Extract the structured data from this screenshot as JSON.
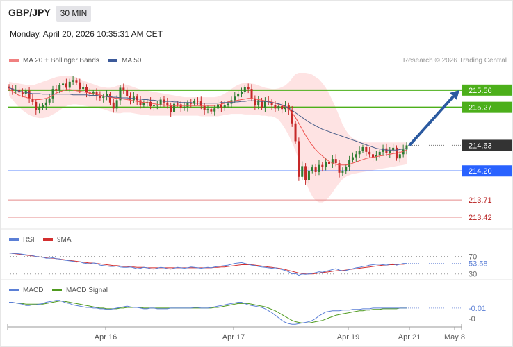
{
  "header": {
    "symbol": "GBP/JPY",
    "timeframe": "30 MIN",
    "datetime": "Monday, April 20, 2026 10:35:31 AM CET"
  },
  "colors": {
    "up_candle": "#2e7d32",
    "down_candle": "#c62828",
    "ma20": "#ef5350",
    "ma50": "#4a5f8a",
    "bollinger": "#fddada",
    "resistance": "#4caf1a",
    "support": "#2962ff",
    "last_price": "#333333",
    "forecast_arrow": "#2b5aa0",
    "rsi": "#5b7fd6",
    "rsi_ma": "#d32f2f",
    "macd": "#5b7fd6",
    "macd_signal": "#4f9a1f"
  },
  "chart_data": [
    {
      "type": "candlestick",
      "title": "GBP/JPY",
      "legend": [
        {
          "name": "MA 20 + Bollinger Bands",
          "color": "#f08080"
        },
        {
          "name": "MA 50",
          "color": "#3c5a9a"
        }
      ],
      "legend_position": "top-left",
      "credit": "Research © 2026 Trading Central",
      "yaxis_side": "right",
      "ylim": [
        213.35,
        215.85
      ],
      "x_ticks": [
        "Apr 16",
        "Apr 17",
        "Apr 19",
        "Apr 21",
        "May 8"
      ],
      "levels": [
        {
          "value": 215.56,
          "label": "215.56",
          "kind": "resistance"
        },
        {
          "value": 215.27,
          "label": "215.27",
          "kind": "resistance"
        },
        {
          "value": 214.63,
          "label": "214.63",
          "kind": "last_price"
        },
        {
          "value": 214.2,
          "label": "214.20",
          "kind": "support"
        },
        {
          "value": 213.71,
          "label": "213.71",
          "kind": "support_line"
        },
        {
          "value": 213.42,
          "label": "213.42",
          "kind": "support_line"
        }
      ],
      "forecast_target": 215.56,
      "close": [
        215.59,
        215.55,
        215.57,
        215.52,
        215.5,
        215.55,
        215.41,
        215.36,
        215.23,
        215.26,
        215.3,
        215.35,
        215.42,
        215.58,
        215.55,
        215.64,
        215.67,
        215.6,
        215.7,
        215.73,
        215.69,
        215.58,
        215.61,
        215.52,
        215.5,
        215.53,
        215.46,
        215.43,
        215.45,
        215.49,
        215.35,
        215.25,
        215.39,
        215.6,
        215.56,
        215.46,
        215.39,
        215.45,
        215.39,
        215.31,
        215.35,
        215.36,
        215.29,
        215.3,
        215.31,
        215.4,
        215.35,
        215.3,
        215.19,
        215.33,
        215.32,
        215.26,
        215.28,
        215.34,
        215.33,
        215.38,
        215.37,
        215.29,
        215.23,
        215.24,
        215.2,
        215.25,
        215.32,
        215.27,
        215.3,
        215.33,
        215.39,
        215.45,
        215.5,
        215.53,
        215.61,
        215.58,
        215.42,
        215.3,
        215.39,
        215.26,
        215.38,
        215.36,
        215.31,
        215.25,
        215.29,
        215.24,
        215.3,
        215.22,
        215.0,
        214.7,
        214.1,
        214.28,
        214.05,
        214.2,
        214.26,
        214.18,
        214.3,
        214.27,
        214.35,
        214.32,
        214.4,
        214.33,
        214.17,
        214.19,
        214.27,
        214.39,
        214.43,
        214.48,
        214.54,
        214.6,
        214.52,
        214.48,
        214.43,
        214.46,
        214.52,
        214.58,
        214.5,
        214.55,
        214.59,
        214.41,
        214.48,
        214.56,
        214.63
      ],
      "ma20": [
        215.58,
        215.54,
        215.5,
        215.47,
        215.45,
        215.44,
        215.42,
        215.41,
        215.4,
        215.4,
        215.41,
        215.42,
        215.44,
        215.47,
        215.51,
        215.53,
        215.55,
        215.57,
        215.57,
        215.56,
        215.55,
        215.54,
        215.53,
        215.52,
        215.51,
        215.5,
        215.49,
        215.48,
        215.46,
        215.45,
        215.44,
        215.43,
        215.42,
        215.42,
        215.41,
        215.4,
        215.39,
        215.38,
        215.37,
        215.36,
        215.35,
        215.35,
        215.34,
        215.33,
        215.32,
        215.31,
        215.31,
        215.3,
        215.3,
        215.3,
        215.3,
        215.3,
        215.3,
        215.3,
        215.3,
        215.3,
        215.3,
        215.3,
        215.3,
        215.3,
        215.3,
        215.3,
        215.31,
        215.32,
        215.34,
        215.36,
        215.37,
        215.38,
        215.39,
        215.4,
        215.41,
        215.42,
        215.42,
        215.41,
        215.4,
        215.39,
        215.38,
        215.37,
        215.36,
        215.34,
        215.32,
        215.3,
        215.28,
        215.24,
        215.18,
        215.1,
        215.0,
        214.9,
        214.8,
        214.71,
        214.63,
        214.56,
        214.5,
        214.45,
        214.4,
        214.36,
        214.33,
        214.31,
        214.3,
        214.3,
        214.3,
        214.31,
        214.33,
        214.35,
        214.37,
        214.39,
        214.41,
        214.42,
        214.43,
        214.44,
        214.45,
        214.46,
        214.47,
        214.48,
        214.49,
        214.5,
        214.51,
        214.53,
        214.55
      ],
      "ma50": [
        215.6,
        215.58,
        215.56,
        215.54,
        215.53,
        215.52,
        215.51,
        215.5,
        215.5,
        215.5,
        215.49,
        215.49,
        215.49,
        215.49,
        215.49,
        215.49,
        215.49,
        215.49,
        215.49,
        215.48,
        215.48,
        215.48,
        215.48,
        215.48,
        215.47,
        215.47,
        215.47,
        215.46,
        215.46,
        215.45,
        215.45,
        215.44,
        215.44,
        215.43,
        215.43,
        215.43,
        215.42,
        215.42,
        215.41,
        215.41,
        215.4,
        215.4,
        215.39,
        215.39,
        215.38,
        215.38,
        215.37,
        215.37,
        215.37,
        215.36,
        215.36,
        215.35,
        215.35,
        215.35,
        215.35,
        215.34,
        215.34,
        215.34,
        215.34,
        215.34,
        215.34,
        215.34,
        215.34,
        215.35,
        215.35,
        215.35,
        215.35,
        215.36,
        215.36,
        215.37,
        215.37,
        215.38,
        215.38,
        215.38,
        215.37,
        215.37,
        215.37,
        215.36,
        215.35,
        215.34,
        215.33,
        215.31,
        215.29,
        215.26,
        215.22,
        215.18,
        215.14,
        215.1,
        215.06,
        215.02,
        214.99,
        214.96,
        214.93,
        214.9,
        214.88,
        214.86,
        214.84,
        214.82,
        214.8,
        214.78,
        214.76,
        214.74,
        214.72,
        214.7,
        214.68,
        214.66,
        214.64,
        214.62,
        214.6,
        214.58,
        214.57,
        214.56,
        214.55,
        214.55,
        214.55,
        214.55,
        214.56,
        214.57,
        214.58
      ],
      "bb_upper": [
        215.7,
        215.69,
        215.68,
        215.67,
        215.66,
        215.65,
        215.64,
        215.64,
        215.66,
        215.68,
        215.7,
        215.72,
        215.74,
        215.76,
        215.78,
        215.79,
        215.8,
        215.8,
        215.8,
        215.79,
        215.77,
        215.75,
        215.72,
        215.7,
        215.68,
        215.66,
        215.64,
        215.62,
        215.61,
        215.6,
        215.6,
        215.61,
        215.63,
        215.65,
        215.66,
        215.65,
        215.63,
        215.61,
        215.59,
        215.57,
        215.56,
        215.55,
        215.54,
        215.53,
        215.52,
        215.51,
        215.5,
        215.49,
        215.48,
        215.47,
        215.46,
        215.45,
        215.44,
        215.44,
        215.44,
        215.44,
        215.44,
        215.44,
        215.44,
        215.44,
        215.44,
        215.44,
        215.45,
        215.47,
        215.5,
        215.54,
        215.58,
        215.62,
        215.65,
        215.67,
        215.68,
        215.68,
        215.67,
        215.66,
        215.64,
        215.62,
        215.6,
        215.59,
        215.58,
        215.58,
        215.59,
        215.61,
        215.64,
        215.69,
        215.76,
        215.83,
        215.85,
        215.85,
        215.85,
        215.84,
        215.82,
        215.78,
        215.74,
        215.68,
        215.6,
        215.5,
        215.38,
        215.26,
        215.12,
        214.98,
        214.88,
        214.8,
        214.75,
        214.72,
        214.7,
        214.69,
        214.68,
        214.68,
        214.68,
        214.68,
        214.68,
        214.68,
        214.68,
        214.68,
        214.68,
        214.68,
        214.68,
        214.68,
        214.68
      ],
      "bb_lower": [
        215.46,
        215.4,
        215.33,
        215.27,
        215.22,
        215.18,
        215.14,
        215.12,
        215.1,
        215.09,
        215.09,
        215.1,
        215.12,
        215.15,
        215.18,
        215.22,
        215.26,
        215.29,
        215.31,
        215.32,
        215.32,
        215.31,
        215.3,
        215.29,
        215.28,
        215.27,
        215.26,
        215.25,
        215.24,
        215.22,
        215.2,
        215.18,
        215.17,
        215.17,
        215.18,
        215.18,
        215.18,
        215.17,
        215.16,
        215.15,
        215.14,
        215.14,
        215.13,
        215.13,
        215.13,
        215.13,
        215.13,
        215.13,
        215.13,
        215.13,
        215.13,
        215.13,
        215.13,
        215.13,
        215.13,
        215.13,
        215.13,
        215.12,
        215.12,
        215.12,
        215.12,
        215.12,
        215.12,
        215.13,
        215.14,
        215.15,
        215.16,
        215.16,
        215.16,
        215.16,
        215.15,
        215.15,
        215.15,
        215.14,
        215.14,
        215.13,
        215.13,
        215.12,
        215.12,
        215.1,
        215.06,
        214.99,
        214.9,
        214.8,
        214.68,
        214.54,
        214.38,
        214.2,
        214.03,
        213.88,
        213.77,
        213.7,
        213.67,
        213.67,
        213.7,
        213.76,
        213.84,
        213.92,
        214.0,
        214.06,
        214.1,
        214.13,
        214.15,
        214.16,
        214.17,
        214.18,
        214.19,
        214.2,
        214.21,
        214.22,
        214.23,
        214.24,
        214.25,
        214.26,
        214.27,
        214.28,
        214.29,
        214.3,
        214.31
      ]
    },
    {
      "type": "line",
      "legend": [
        {
          "name": "RSI",
          "color": "#5b7fd6"
        },
        {
          "name": "9MA",
          "color": "#d32f2f"
        }
      ],
      "y_ticks": [
        "70",
        "30"
      ],
      "last_value_label": "53.58",
      "rsi": [
        78,
        77,
        77,
        76,
        75,
        74,
        73,
        72,
        70,
        69,
        68,
        66,
        66,
        67,
        65,
        64,
        62,
        61,
        60,
        59,
        57,
        58,
        55,
        54,
        53,
        55,
        54,
        50,
        49,
        48,
        47,
        47,
        48,
        46,
        45,
        45,
        46,
        44,
        42,
        43,
        45,
        44,
        42,
        41,
        43,
        45,
        44,
        42,
        41,
        43,
        45,
        44,
        43,
        44,
        46,
        45,
        44,
        43,
        44,
        45,
        44,
        46,
        47,
        48,
        49,
        50,
        52,
        54,
        55,
        56,
        54,
        52,
        50,
        49,
        47,
        46,
        45,
        44,
        43,
        44,
        42,
        40,
        38,
        35,
        30,
        31,
        27,
        30,
        29,
        30,
        31,
        33,
        35,
        34,
        36,
        38,
        40,
        42,
        39,
        37,
        38,
        40,
        42,
        44,
        45,
        47,
        48,
        50,
        51,
        52,
        52,
        51,
        50,
        52,
        53,
        50,
        52,
        54,
        54
      ],
      "rsi_ma": [
        78,
        77,
        76,
        75,
        74,
        73,
        72,
        71,
        70,
        69,
        68,
        67,
        66,
        66,
        65,
        64,
        63,
        62,
        61,
        60,
        59,
        58,
        57,
        56,
        55,
        55,
        54,
        53,
        52,
        51,
        50,
        49,
        49,
        48,
        47,
        47,
        46,
        46,
        45,
        45,
        45,
        44,
        44,
        44,
        44,
        44,
        44,
        44,
        44,
        44,
        44,
        44,
        44,
        44,
        44,
        44,
        44,
        44,
        44,
        44,
        44,
        45,
        45,
        46,
        46,
        47,
        48,
        49,
        50,
        51,
        51,
        51,
        51,
        50,
        49,
        48,
        47,
        46,
        45,
        44,
        43,
        42,
        40,
        38,
        36,
        34,
        32,
        31,
        30,
        30,
        30,
        31,
        32,
        33,
        34,
        35,
        36,
        37,
        38,
        38,
        39,
        40,
        41,
        42,
        43,
        44,
        45,
        46,
        47,
        48,
        49,
        50,
        50,
        51,
        51,
        51,
        52,
        52,
        53
      ]
    },
    {
      "type": "line",
      "legend": [
        {
          "name": "MACD",
          "color": "#5b7fd6"
        },
        {
          "name": "MACD Signal",
          "color": "#4f9a1f"
        }
      ],
      "y_ticks": [
        "-0"
      ],
      "last_value_label": "-0.01",
      "macd": [
        0.08,
        0.08,
        0.07,
        0.06,
        0.05,
        0.03,
        0.03,
        0.04,
        0.04,
        0.05,
        0.06,
        0.08,
        0.09,
        0.1,
        0.11,
        0.11,
        0.09,
        0.07,
        0.06,
        0.04,
        0.03,
        0.02,
        0.01,
        0.0,
        0.0,
        -0.01,
        -0.01,
        -0.02,
        -0.02,
        -0.03,
        -0.03,
        -0.02,
        -0.01,
        0.0,
        0.01,
        0.02,
        0.01,
        0.0,
        0.0,
        -0.01,
        -0.02,
        -0.02,
        -0.01,
        -0.01,
        -0.02,
        -0.02,
        -0.02,
        -0.02,
        -0.01,
        -0.01,
        -0.01,
        -0.01,
        -0.01,
        -0.01,
        -0.01,
        0.0,
        0.0,
        -0.01,
        -0.01,
        -0.01,
        0.0,
        0.01,
        0.02,
        0.03,
        0.04,
        0.05,
        0.06,
        0.07,
        0.08,
        0.08,
        0.06,
        0.04,
        0.03,
        0.02,
        0.01,
        0.0,
        -0.02,
        -0.05,
        -0.08,
        -0.12,
        -0.16,
        -0.2,
        -0.23,
        -0.25,
        -0.26,
        -0.26,
        -0.25,
        -0.24,
        -0.23,
        -0.22,
        -0.2,
        -0.17,
        -0.13,
        -0.1,
        -0.07,
        -0.06,
        -0.05,
        -0.05,
        -0.05,
        -0.04,
        -0.04,
        -0.04,
        -0.03,
        -0.03,
        -0.03,
        -0.02,
        -0.02,
        -0.02,
        -0.01,
        -0.01,
        -0.01,
        -0.01,
        -0.01,
        -0.01,
        -0.01,
        -0.01,
        -0.01,
        -0.01,
        -0.01
      ],
      "macd_signal": [
        0.07,
        0.07,
        0.07,
        0.06,
        0.06,
        0.05,
        0.05,
        0.05,
        0.05,
        0.05,
        0.05,
        0.06,
        0.07,
        0.08,
        0.09,
        0.1,
        0.1,
        0.09,
        0.08,
        0.07,
        0.06,
        0.05,
        0.04,
        0.03,
        0.02,
        0.01,
        0.0,
        -0.01,
        -0.01,
        -0.02,
        -0.02,
        -0.02,
        -0.02,
        -0.01,
        -0.01,
        0.0,
        0.0,
        0.0,
        0.0,
        0.0,
        -0.01,
        -0.01,
        -0.01,
        -0.01,
        -0.01,
        -0.01,
        -0.01,
        -0.01,
        -0.01,
        -0.01,
        -0.01,
        -0.01,
        -0.01,
        -0.01,
        -0.01,
        -0.01,
        -0.01,
        -0.01,
        -0.01,
        -0.01,
        -0.01,
        0.0,
        0.0,
        0.01,
        0.02,
        0.03,
        0.04,
        0.05,
        0.06,
        0.06,
        0.06,
        0.06,
        0.05,
        0.04,
        0.03,
        0.02,
        0.01,
        -0.01,
        -0.03,
        -0.05,
        -0.08,
        -0.11,
        -0.14,
        -0.17,
        -0.2,
        -0.22,
        -0.23,
        -0.24,
        -0.24,
        -0.24,
        -0.23,
        -0.22,
        -0.21,
        -0.2,
        -0.18,
        -0.16,
        -0.14,
        -0.12,
        -0.11,
        -0.1,
        -0.09,
        -0.08,
        -0.07,
        -0.06,
        -0.05,
        -0.05,
        -0.04,
        -0.04,
        -0.03,
        -0.03,
        -0.03,
        -0.02,
        -0.02,
        -0.02,
        -0.02,
        -0.02,
        -0.01,
        -0.01,
        -0.01
      ]
    }
  ]
}
